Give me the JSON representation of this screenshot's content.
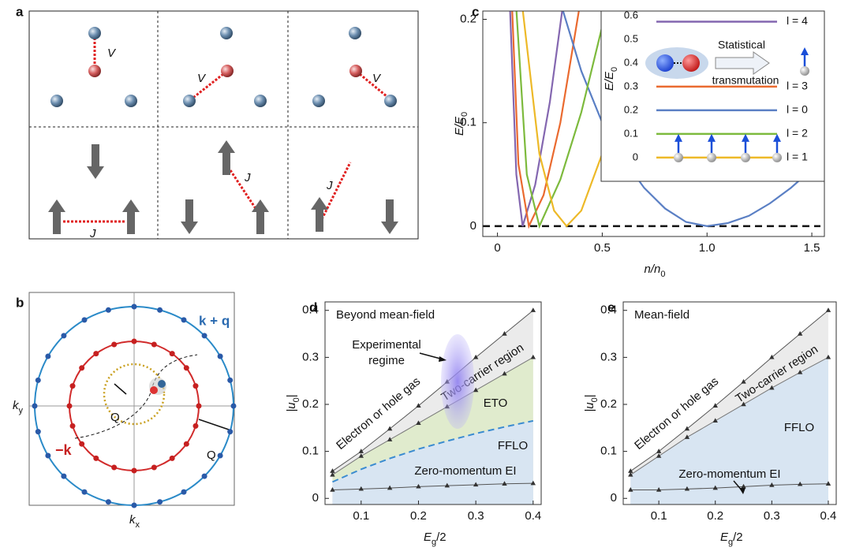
{
  "panels": {
    "a": {
      "label": "a",
      "bond_labels_top": [
        "V",
        "V",
        "V"
      ],
      "bond_labels_bottom": [
        "J",
        "J",
        "J"
      ]
    },
    "b": {
      "label": "b",
      "outer_label": "k + q",
      "inner_label": "−k",
      "q_labels": [
        "Q",
        "Q"
      ],
      "x_axis": {
        "text": "k",
        "sub": "x"
      },
      "y_axis": {
        "text": "k",
        "sub": "y"
      }
    }
  },
  "chart_data": [
    {
      "label": "c",
      "type": "line",
      "xlabel": {
        "text": "n/n",
        "sub": "0"
      },
      "ylabel": {
        "text": "E/E",
        "sub": "0"
      },
      "xlim": [
        -0.07,
        1.56
      ],
      "ylim": [
        -0.01,
        0.208
      ],
      "xticks": [
        0,
        0.5,
        {
          "value": 1,
          "label": "1.0"
        },
        1.5
      ],
      "yticks": [
        0,
        0.1,
        0.2
      ],
      "zero_line": true,
      "series": [
        {
          "name": "l = 4",
          "color": "#8467b0",
          "level": 0.575,
          "x": [
            0.06,
            0.09,
            0.12,
            0.18,
            0.25,
            0.31
          ],
          "values": [
            0.21,
            0.05,
            0,
            0.04,
            0.12,
            0.21
          ]
        },
        {
          "name": "l = 3",
          "color": "#ea6a2f",
          "level": 0.3,
          "x": [
            0.07,
            0.1,
            0.15,
            0.22,
            0.3,
            0.39
          ],
          "values": [
            0.21,
            0.06,
            0,
            0.03,
            0.1,
            0.21
          ]
        },
        {
          "name": "l = 0",
          "color": "#5a7fc4",
          "level": 0.2,
          "x": [
            0.31,
            0.4,
            0.5,
            0.6,
            0.7,
            0.8,
            0.9,
            1.0,
            1.1,
            1.2,
            1.3,
            1.4,
            1.54
          ],
          "values": [
            0.21,
            0.15,
            0.1,
            0.065,
            0.037,
            0.017,
            0.004,
            0,
            0.003,
            0.01,
            0.022,
            0.037,
            0.062
          ]
        },
        {
          "name": "l = 2",
          "color": "#7dba3d",
          "level": 0.1,
          "x": [
            0.09,
            0.14,
            0.2,
            0.3,
            0.4,
            0.52
          ],
          "values": [
            0.21,
            0.05,
            0,
            0.045,
            0.11,
            0.21
          ]
        },
        {
          "name": "l = 1",
          "color": "#edb928",
          "level": 0,
          "x": [
            0.12,
            0.2,
            0.27,
            0.33,
            0.4,
            0.5,
            0.62
          ],
          "values": [
            0.21,
            0.07,
            0.015,
            0,
            0.015,
            0.07,
            0.14
          ]
        }
      ],
      "inset": {
        "type": "line",
        "ylabel": {
          "text": "E/E",
          "sub": "0"
        },
        "ylim": [
          -0.074,
          0.62
        ],
        "yticks": [
          0,
          0.1,
          0.2,
          0.3,
          0.4,
          0.5,
          0.6
        ],
        "annotation": [
          "Statistical",
          "transmutation"
        ]
      }
    },
    {
      "label": "d",
      "type": "line",
      "title": "Beyond mean-field",
      "xlabel": {
        "text": "E",
        "sub": "g",
        "after": "/2"
      },
      "ylabel": {
        "text": "|u",
        "sub": "0",
        "after": "|"
      },
      "xlim": [
        0.037,
        0.414
      ],
      "ylim": [
        -0.013,
        0.418
      ],
      "xticks": [
        0.1,
        0.2,
        0.3,
        0.4
      ],
      "yticks": [
        0,
        0.1,
        0.2,
        0.3,
        0.4
      ],
      "x": [
        0.05,
        0.1,
        0.15,
        0.2,
        0.25,
        0.3,
        0.35,
        0.4
      ],
      "series": [
        {
          "color": "#555555",
          "fill": "#ebebeb",
          "marker": "triangle",
          "values": [
            0.058,
            0.1,
            0.148,
            0.197,
            0.248,
            0.3,
            0.35,
            0.4
          ]
        },
        {
          "color": "#777777",
          "fill": "#e0ebcd",
          "marker": "triangle",
          "values": [
            0.05,
            0.09,
            0.125,
            0.16,
            0.195,
            0.23,
            0.265,
            0.3
          ]
        },
        {
          "color": "#3a8bd0",
          "fill": "#d8e5f2",
          "dash": true,
          "values": [
            0.035,
            0.062,
            0.085,
            0.105,
            0.122,
            0.138,
            0.152,
            0.165
          ]
        },
        {
          "color": "#555555",
          "fill": "#d8e5f2",
          "marker": "triangle",
          "values": [
            0.018,
            0.02,
            0.022,
            0.025,
            0.027,
            0.029,
            0.031,
            0.032
          ]
        }
      ],
      "annotations": [
        "Electron or hole gas",
        "Two-carrier region",
        "ETO",
        "FFLO",
        "Zero-momentum EI"
      ],
      "experimental_regime": [
        "Experimental",
        "regime"
      ]
    },
    {
      "label": "e",
      "type": "line",
      "title": "Mean-field",
      "xlabel": {
        "text": "E",
        "sub": "g",
        "after": "/2"
      },
      "ylabel": {
        "text": "|u",
        "sub": "0",
        "after": "|"
      },
      "xlim": [
        0.037,
        0.414
      ],
      "ylim": [
        -0.013,
        0.418
      ],
      "xticks": [
        0.1,
        0.2,
        0.3,
        0.4
      ],
      "yticks": [
        0,
        0.1,
        0.2,
        0.3,
        0.4
      ],
      "x": [
        0.05,
        0.1,
        0.15,
        0.2,
        0.25,
        0.3,
        0.35,
        0.4
      ],
      "series": [
        {
          "color": "#555555",
          "fill": "#ebebeb",
          "marker": "triangle",
          "values": [
            0.058,
            0.1,
            0.148,
            0.197,
            0.248,
            0.3,
            0.35,
            0.4
          ]
        },
        {
          "color": "#777777",
          "fill": "#d8e5f2",
          "marker": "triangle",
          "values": [
            0.05,
            0.09,
            0.13,
            0.165,
            0.2,
            0.235,
            0.268,
            0.3
          ]
        },
        {
          "color": "#555555",
          "fill": "#d8e5f2",
          "marker": "triangle",
          "values": [
            0.018,
            0.018,
            0.02,
            0.022,
            0.025,
            0.028,
            0.03,
            0.031
          ]
        }
      ],
      "annotations": [
        "Electron or hole gas",
        "Two-carrier region",
        "FFLO",
        "Zero-momentum EI"
      ]
    }
  ]
}
